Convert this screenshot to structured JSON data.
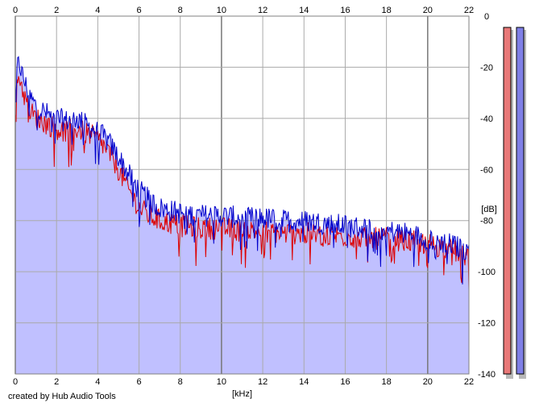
{
  "chart_data": {
    "type": "area",
    "xlabel": "[kHz]",
    "ylabel": "[dB]",
    "xlim": [
      0,
      22
    ],
    "ylim": [
      -140,
      0
    ],
    "x_ticks": [
      0,
      2,
      4,
      6,
      8,
      10,
      12,
      14,
      16,
      18,
      20,
      22
    ],
    "x_tick_labels": [
      "0",
      "2",
      "4",
      "6",
      "8",
      "10",
      "12",
      "14",
      "16",
      "18",
      "20",
      "22"
    ],
    "y_ticks": [
      0,
      -20,
      -40,
      -60,
      -80,
      -100,
      -120,
      -140
    ],
    "y_tick_labels": [
      "0",
      "-20",
      "-40",
      "-60",
      "-80",
      "-100",
      "-120",
      "-140"
    ],
    "grid": true,
    "series": [
      {
        "color": "#0000cc",
        "x": [
          0.0,
          0.1,
          0.2,
          0.3,
          0.5,
          0.8,
          1.0,
          1.5,
          2.0,
          2.5,
          3.0,
          3.5,
          4.0,
          4.5,
          5.0,
          5.5,
          6.0,
          6.5,
          7.0,
          8.0,
          9.0,
          10.0,
          11.0,
          12.0,
          13.0,
          14.0,
          15.0,
          16.0,
          17.0,
          18.0,
          19.0,
          20.0,
          21.0,
          22.0
        ],
        "y": [
          -28,
          -20,
          -18,
          -22,
          -27,
          -33,
          -35,
          -38,
          -40,
          -41,
          -40,
          -43,
          -45,
          -49,
          -55,
          -62,
          -68,
          -72,
          -75,
          -77,
          -78,
          -78,
          -79,
          -79,
          -80,
          -80,
          -81,
          -82,
          -83,
          -84,
          -85,
          -87,
          -89,
          -92
        ]
      },
      {
        "color": "#dd0000",
        "x": [
          0.0,
          0.1,
          0.2,
          0.3,
          0.5,
          0.8,
          1.0,
          1.5,
          2.0,
          2.5,
          3.0,
          3.5,
          4.0,
          4.5,
          5.0,
          5.5,
          6.0,
          6.5,
          7.0,
          8.0,
          9.0,
          10.0,
          11.0,
          12.0,
          13.0,
          14.0,
          15.0,
          16.0,
          17.0,
          18.0,
          19.0,
          20.0,
          21.0,
          22.0
        ],
        "y": [
          -34,
          -25,
          -23,
          -27,
          -33,
          -38,
          -40,
          -42,
          -44,
          -45,
          -44,
          -46,
          -48,
          -53,
          -60,
          -68,
          -75,
          -78,
          -80,
          -82,
          -83,
          -83,
          -84,
          -84,
          -85,
          -85,
          -86,
          -86,
          -87,
          -87,
          -88,
          -89,
          -91,
          -94
        ]
      }
    ],
    "fill_color": "#c0c0ff",
    "level_meters": [
      {
        "color": "#e87878",
        "level": 1.0
      },
      {
        "color": "#7f7fe6",
        "level": 1.0
      }
    ]
  },
  "footer": {
    "credit": "created by Hub Audio Tools"
  }
}
